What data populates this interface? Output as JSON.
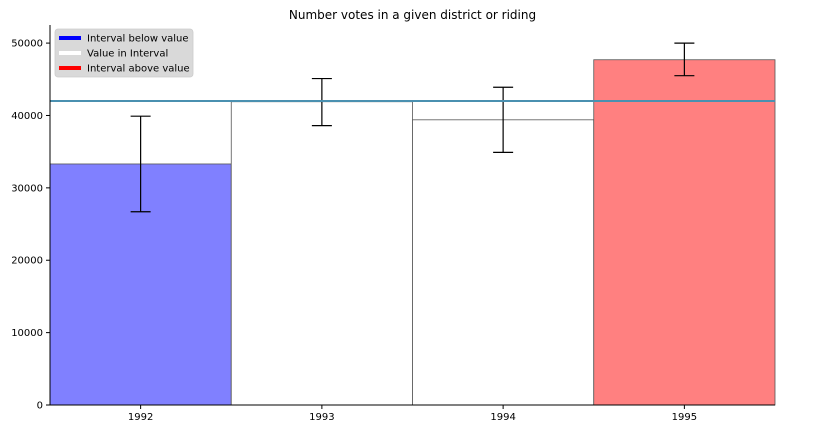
{
  "chart_data": {
    "type": "bar",
    "title": "Number votes in a given district or riding",
    "xlabel": "",
    "ylabel": "",
    "categories": [
      "1992",
      "1993",
      "1994",
      "1995"
    ],
    "values": [
      33300,
      41900,
      39400,
      47700
    ],
    "error_low": [
      26700,
      38600,
      34900,
      45500
    ],
    "error_high": [
      39900,
      45100,
      43900,
      50000
    ],
    "bar_colors": [
      "#8080ff",
      "#ffffff",
      "#ffffff",
      "#ff8080"
    ],
    "reference_line": {
      "value": 42000,
      "color": "#4a90b0"
    },
    "ylim": [
      0,
      52500
    ],
    "yticks": [
      0,
      10000,
      20000,
      30000,
      40000,
      50000
    ],
    "ytick_labels": [
      "0",
      "10000",
      "20000",
      "30000",
      "40000",
      "50000"
    ],
    "grid": false,
    "legend": {
      "placement": "top-left",
      "items": [
        {
          "label": "Interval below value",
          "color": "#0000ff"
        },
        {
          "label": "Value in Interval",
          "color": "#ffffff"
        },
        {
          "label": "Interval above value",
          "color": "#ff0000"
        }
      ]
    }
  }
}
